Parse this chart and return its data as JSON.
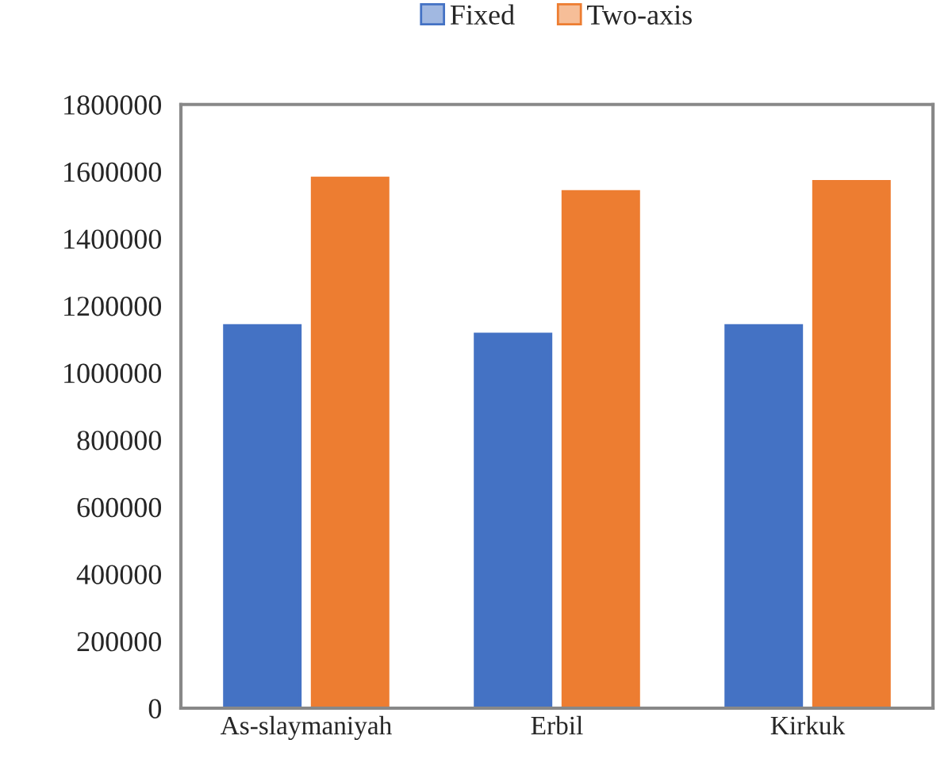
{
  "chart_data": {
    "type": "bar",
    "categories": [
      "As-slaymaniyah",
      "Erbil",
      "Kirkuk"
    ],
    "series": [
      {
        "name": "Fixed",
        "color": "#4472c4",
        "values": [
          1140000,
          1115000,
          1140000
        ]
      },
      {
        "name": "Two-axis",
        "color": "#ed7d31",
        "values": [
          1580000,
          1540000,
          1570000
        ]
      }
    ],
    "ylim": [
      0,
      1800000
    ],
    "yticks": [
      0,
      200000,
      400000,
      600000,
      800000,
      1000000,
      1200000,
      1400000,
      1600000,
      1800000
    ],
    "grid": false,
    "legend": "top"
  }
}
